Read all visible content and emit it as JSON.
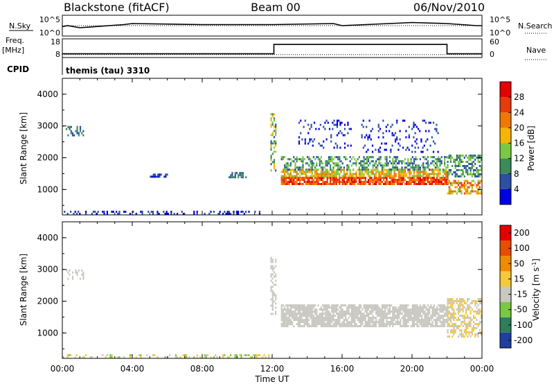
{
  "header": {
    "station": "Blackstone (fitACF)",
    "beam": "Beam 00",
    "date": "06/Nov/2010"
  },
  "panel_labels": {
    "nsky": "N.Sky",
    "nsearch": "N.Search",
    "freq": "Freq.",
    "freq_unit": "[MHz]",
    "nave": "Nave",
    "cpid": "CPID",
    "cpid_value": "themis (tau) 3310"
  },
  "chart_data": [
    {
      "type": "line",
      "name": "noise",
      "yticks_left": [
        "10^5",
        "10^0"
      ],
      "yticks_right": [
        "10^5",
        "10^0"
      ],
      "series": [
        {
          "name": "N.Sky",
          "style": "solid",
          "points": [
            [
              0,
              0.45
            ],
            [
              0.3,
              0.5
            ],
            [
              1,
              0.4
            ],
            [
              3.5,
              0.55
            ],
            [
              4,
              0.6
            ],
            [
              8,
              0.55
            ],
            [
              12,
              0.55
            ],
            [
              15.5,
              0.6
            ],
            [
              16,
              0.5
            ],
            [
              20,
              0.65
            ],
            [
              22,
              0.6
            ],
            [
              23.7,
              0.5
            ],
            [
              24,
              0.5
            ]
          ]
        },
        {
          "name": "N.Search",
          "style": "dotted",
          "points": [
            [
              0,
              0.5
            ],
            [
              24,
              0.5
            ]
          ]
        }
      ]
    },
    {
      "type": "line",
      "name": "frequency_nave",
      "yticks_left": [
        "18",
        "8"
      ],
      "yticks_right": [
        "60",
        "0"
      ],
      "series": [
        {
          "name": "Freq.",
          "style": "solid",
          "points": [
            [
              0,
              10
            ],
            [
              12.1,
              10
            ],
            [
              12.1,
              15
            ],
            [
              22.0,
              15
            ],
            [
              22.0,
              10
            ],
            [
              24,
              10
            ]
          ]
        },
        {
          "name": "Nave",
          "style": "dotted",
          "points": [
            [
              0,
              9.6
            ],
            [
              24,
              9.6
            ]
          ]
        }
      ]
    },
    {
      "type": "heatmap",
      "name": "power",
      "ylabel": "Slant Range [km]",
      "yticks": [
        "1000",
        "2000",
        "3000",
        "4000"
      ],
      "ylim": [
        200,
        4500
      ],
      "colorbar": {
        "label": "Power [dB]",
        "ticks": [
          "4",
          "8",
          "12",
          "16",
          "20",
          "24",
          "28"
        ],
        "colors": [
          "#0000e6",
          "#2c4fa3",
          "#3a8a5a",
          "#7ac943",
          "#f7b500",
          "#f07800",
          "#e83a0a",
          "#e60000"
        ]
      },
      "regions": [
        {
          "x": [
            0.2,
            1.2
          ],
          "range": [
            2700,
            3000
          ],
          "density": 0.4,
          "level": [
            1,
            2
          ]
        },
        {
          "x": [
            0,
            11.8
          ],
          "range": [
            230,
            330
          ],
          "density": 0.35,
          "level": [
            0,
            1
          ]
        },
        {
          "x": [
            5,
            6
          ],
          "range": [
            1400,
            1500
          ],
          "density": 0.5,
          "level": [
            0,
            1
          ]
        },
        {
          "x": [
            9.5,
            10.5
          ],
          "range": [
            1400,
            1550
          ],
          "density": 0.5,
          "level": [
            1,
            2
          ]
        },
        {
          "x": [
            11.9,
            12.2
          ],
          "range": [
            1600,
            3400
          ],
          "density": 0.5,
          "level": [
            1,
            4
          ]
        },
        {
          "x": [
            12.5,
            22
          ],
          "range": [
            1200,
            1400
          ],
          "density": 0.85,
          "level": [
            5,
            7
          ]
        },
        {
          "x": [
            12.5,
            22
          ],
          "range": [
            1400,
            1650
          ],
          "density": 0.75,
          "level": [
            3,
            5
          ]
        },
        {
          "x": [
            12.5,
            22
          ],
          "range": [
            1650,
            2050
          ],
          "density": 0.5,
          "level": [
            1,
            3
          ]
        },
        {
          "x": [
            13.5,
            16.5
          ],
          "range": [
            2300,
            3200
          ],
          "density": 0.15,
          "level": [
            0,
            1
          ]
        },
        {
          "x": [
            17,
            21.5
          ],
          "range": [
            2200,
            3200
          ],
          "density": 0.12,
          "level": [
            0,
            1
          ]
        },
        {
          "x": [
            22,
            24
          ],
          "range": [
            900,
            1300
          ],
          "density": 0.6,
          "level": [
            3,
            6
          ]
        },
        {
          "x": [
            22,
            24
          ],
          "range": [
            1400,
            2100
          ],
          "density": 0.5,
          "level": [
            1,
            3
          ]
        }
      ]
    },
    {
      "type": "heatmap",
      "name": "velocity",
      "ylabel": "Slant Range [km]",
      "yticks": [
        "1000",
        "2000",
        "3000",
        "4000"
      ],
      "ylim": [
        200,
        4500
      ],
      "xlabel": "Time UT",
      "xticks": [
        "00:00",
        "04:00",
        "08:00",
        "12:00",
        "16:00",
        "20:00",
        "00:00"
      ],
      "xlim": [
        0,
        24
      ],
      "colorbar": {
        "label": "Velocity [m s^-1]",
        "ticks": [
          "200",
          "100",
          "50",
          "15",
          "-15",
          "-50",
          "-100",
          "-200"
        ],
        "colors": [
          "#1f3fa0",
          "#2e7d5b",
          "#7ac943",
          "#c8c8c0",
          "#f7c93a",
          "#f08a00",
          "#e84d00",
          "#e60000"
        ]
      },
      "regions": [
        {
          "x": [
            0.2,
            1.2
          ],
          "range": [
            2700,
            3000
          ],
          "density": 0.4,
          "level": [
            3,
            3
          ]
        },
        {
          "x": [
            0,
            11.8
          ],
          "range": [
            230,
            330
          ],
          "density": 0.3,
          "level": [
            2,
            4
          ]
        },
        {
          "x": [
            11.9,
            12.2
          ],
          "range": [
            1600,
            3400
          ],
          "density": 0.5,
          "level": [
            3,
            3
          ]
        },
        {
          "x": [
            12.5,
            22
          ],
          "range": [
            1200,
            1900
          ],
          "density": 0.8,
          "level": [
            3,
            3
          ]
        },
        {
          "x": [
            22,
            24
          ],
          "range": [
            900,
            2100
          ],
          "density": 0.55,
          "level": [
            3,
            4
          ]
        }
      ]
    }
  ]
}
